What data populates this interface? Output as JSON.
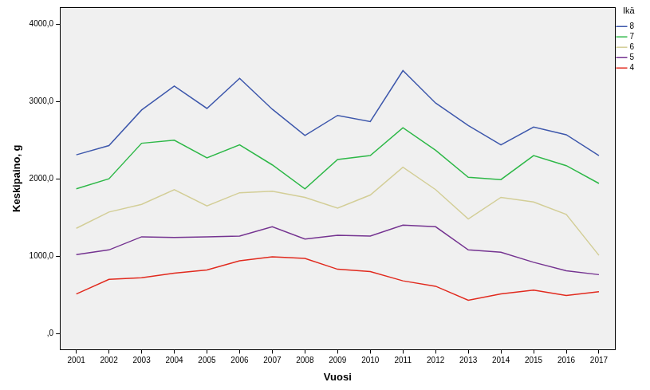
{
  "chart_data": {
    "type": "line",
    "x_label": "Vuosi",
    "y_label": "Keskipaino, g",
    "legend_title": "Ikä",
    "legend": "right",
    "grid": false,
    "categories": [
      "2001",
      "2002",
      "2003",
      "2004",
      "2005",
      "2006",
      "2007",
      "2008",
      "2009",
      "2010",
      "2011",
      "2012",
      "2013",
      "2014",
      "2015",
      "2016",
      "2017"
    ],
    "ylim": [
      -210,
      4220
    ],
    "yticks": [
      {
        "value": 0,
        "label": ",0"
      },
      {
        "value": 1000,
        "label": "1000,0"
      },
      {
        "value": 2000,
        "label": "2000,0"
      },
      {
        "value": 3000,
        "label": "3000,0"
      },
      {
        "value": 4000,
        "label": "4000,0"
      }
    ],
    "series": [
      {
        "name": "8",
        "color": "#3e58ac",
        "values": [
          2310,
          2430,
          2890,
          3200,
          2910,
          3300,
          2900,
          2560,
          2820,
          2740,
          3400,
          2980,
          2690,
          2440,
          2670,
          2570,
          2300
        ]
      },
      {
        "name": "7",
        "color": "#2eb848",
        "values": [
          1870,
          2000,
          2460,
          2500,
          2270,
          2440,
          2180,
          1870,
          2250,
          2300,
          2660,
          2370,
          2020,
          1990,
          2300,
          2170,
          1940
        ]
      },
      {
        "name": "6",
        "color": "#d3ce97",
        "values": [
          1360,
          1570,
          1670,
          1860,
          1650,
          1820,
          1840,
          1760,
          1620,
          1790,
          2150,
          1860,
          1480,
          1760,
          1700,
          1540,
          1010
        ]
      },
      {
        "name": "5",
        "color": "#753491",
        "values": [
          1020,
          1080,
          1250,
          1240,
          1250,
          1260,
          1380,
          1220,
          1270,
          1260,
          1400,
          1380,
          1080,
          1050,
          920,
          810,
          760
        ]
      },
      {
        "name": "4",
        "color": "#e12a1e",
        "values": [
          510,
          700,
          720,
          780,
          820,
          940,
          990,
          970,
          830,
          800,
          680,
          610,
          430,
          510,
          560,
          490,
          540
        ]
      }
    ]
  }
}
